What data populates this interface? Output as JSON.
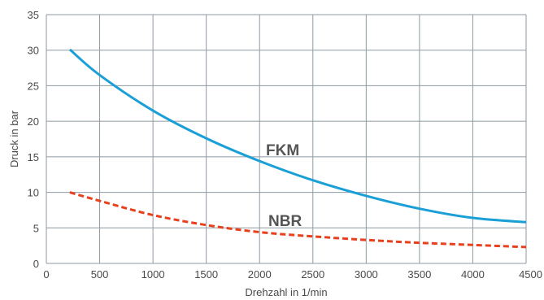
{
  "chart_data": {
    "type": "line",
    "xlabel": "Drehzahl in 1/min",
    "ylabel": "Druck in bar",
    "xlim": [
      0,
      4500
    ],
    "ylim": [
      0,
      35
    ],
    "xticks": [
      0,
      500,
      1000,
      1500,
      2000,
      2500,
      3000,
      3500,
      4000,
      4500
    ],
    "yticks": [
      0,
      5,
      10,
      15,
      20,
      25,
      30,
      35
    ],
    "grid": true,
    "series": [
      {
        "name": "FKM",
        "color": "#1a9fd6",
        "style": "solid",
        "x": [
          220,
          500,
          1000,
          1500,
          2000,
          2500,
          3000,
          3500,
          4000,
          4500
        ],
        "y": [
          30.1,
          26.5,
          21.5,
          17.6,
          14.4,
          11.7,
          9.5,
          7.7,
          6.4,
          5.8
        ]
      },
      {
        "name": "NBR",
        "color": "#e8401c",
        "style": "dashed",
        "x": [
          220,
          500,
          1000,
          1500,
          2000,
          2500,
          3000,
          3500,
          4000,
          4500
        ],
        "y": [
          10.0,
          8.8,
          6.8,
          5.4,
          4.4,
          3.8,
          3.3,
          2.9,
          2.6,
          2.3
        ]
      }
    ]
  }
}
